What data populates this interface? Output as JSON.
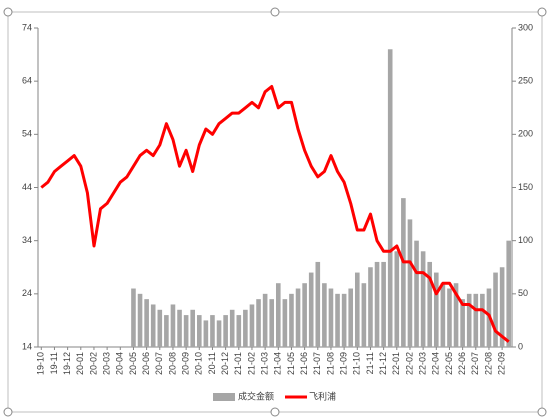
{
  "chart_data": {
    "type": "bar-line",
    "categories": [
      "19-10",
      null,
      "19-11",
      null,
      "19-12",
      null,
      "20-01",
      null,
      "20-02",
      null,
      "20-03",
      null,
      "20-04",
      null,
      "20-05",
      null,
      "20-06",
      null,
      "20-07",
      null,
      "20-08",
      null,
      "20-09",
      null,
      "20-10",
      null,
      "20-11",
      null,
      "20-12",
      null,
      "21-01",
      null,
      "21-02",
      null,
      "21-03",
      null,
      "21-04",
      null,
      "21-05",
      null,
      "21-06",
      null,
      "21-07",
      null,
      "21-08",
      null,
      "21-09",
      null,
      "21-10",
      null,
      "21-11",
      null,
      "21-12",
      null,
      "22-01",
      null,
      "22-02",
      null,
      "22-03",
      null,
      "22-04",
      null,
      "22-05",
      null,
      "22-06",
      null,
      "22-07",
      null,
      "22-08",
      null,
      "22-09",
      null
    ],
    "series": [
      {
        "name": "成交金额",
        "color": "#a6a6a6",
        "axis": "y2",
        "values": [
          null,
          null,
          null,
          null,
          null,
          null,
          null,
          null,
          null,
          null,
          null,
          null,
          null,
          null,
          55,
          50,
          45,
          40,
          35,
          30,
          40,
          35,
          30,
          35,
          30,
          25,
          30,
          25,
          30,
          35,
          30,
          35,
          40,
          45,
          50,
          45,
          60,
          45,
          50,
          55,
          60,
          70,
          80,
          60,
          55,
          50,
          50,
          55,
          70,
          60,
          75,
          80,
          80,
          280,
          90,
          140,
          120,
          100,
          90,
          80,
          70,
          60,
          55,
          60,
          45,
          50,
          50,
          50,
          55,
          70,
          75,
          100
        ]
      },
      {
        "name": "飞利浦",
        "color": "#ff0000",
        "values": [
          44,
          45,
          47,
          48,
          49,
          50,
          48,
          43,
          33,
          40,
          41,
          43,
          45,
          46,
          48,
          50,
          51,
          50,
          52,
          56,
          53,
          48,
          51,
          47,
          52,
          55,
          54,
          56,
          57,
          58,
          58,
          59,
          60,
          59,
          62,
          63,
          59,
          60,
          60,
          55,
          51,
          48,
          46,
          47,
          50,
          47,
          45,
          41,
          36,
          36,
          39,
          34,
          32,
          32,
          33,
          30,
          30,
          28,
          28,
          27,
          24,
          26,
          26,
          24,
          22,
          22,
          21,
          21,
          20,
          17,
          16,
          15
        ]
      }
    ],
    "ylim": [
      14,
      74
    ],
    "yticks": [
      14,
      24,
      34,
      44,
      54,
      64,
      74
    ],
    "y2lim": [
      0,
      300
    ],
    "y2ticks": [
      0,
      50,
      100,
      150,
      200,
      250,
      300
    ],
    "legend": "bottom"
  }
}
